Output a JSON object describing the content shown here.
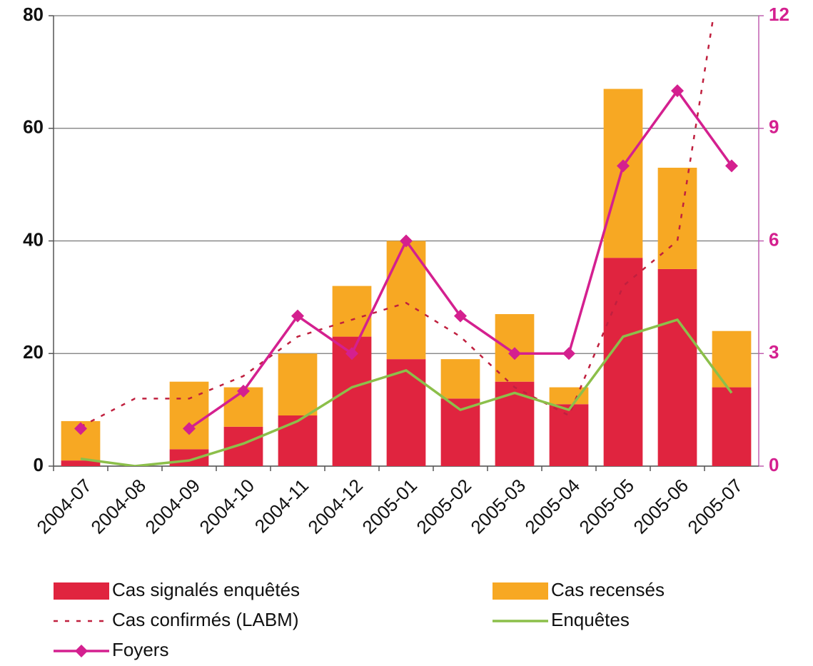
{
  "chart_data": {
    "type": "bar",
    "categories": [
      "2004-07",
      "2004-08",
      "2004-09",
      "2004-10",
      "2004-11",
      "2004-12",
      "2005-01",
      "2005-02",
      "2005-03",
      "2005-04",
      "2005-05",
      "2005-06",
      "2005-07"
    ],
    "series": [
      {
        "name": "Cas signalés enquêtés",
        "type": "bar",
        "stack": true,
        "color": "#e0243f",
        "values": [
          1,
          0,
          3,
          7,
          9,
          23,
          19,
          12,
          15,
          11,
          37,
          35,
          14
        ]
      },
      {
        "name": "Cas recensés",
        "type": "bar",
        "stack": true,
        "color": "#f7a823",
        "values": [
          7,
          0,
          12,
          7,
          11,
          9,
          21,
          7,
          12,
          3,
          30,
          18,
          10
        ]
      },
      {
        "name": "Cas confirmés (LABM)",
        "type": "line",
        "dashed": true,
        "color": "#c0203f",
        "values": [
          7,
          12,
          12,
          16,
          23,
          26,
          29,
          23,
          14,
          9,
          32,
          40,
          100
        ]
      },
      {
        "name": "Enquêtes",
        "type": "line",
        "color": "#8cbf4a",
        "values": [
          1.3,
          0,
          1,
          4,
          8,
          14,
          17,
          10,
          13,
          10,
          23,
          26,
          13
        ]
      },
      {
        "name": "Foyers",
        "type": "line",
        "marker": "diamond",
        "axis": "y2",
        "color": "#d4208f",
        "values": [
          1,
          null,
          1,
          2,
          4,
          3,
          6,
          4,
          3,
          3,
          8,
          10,
          8
        ]
      }
    ],
    "ylim": [
      0,
      80
    ],
    "yticks": [
      0,
      20,
      40,
      60,
      80
    ],
    "y2lim": [
      0,
      12
    ],
    "y2ticks": [
      0,
      3,
      6,
      9,
      12
    ],
    "grid": true,
    "legend": "bottom"
  }
}
